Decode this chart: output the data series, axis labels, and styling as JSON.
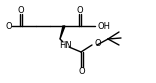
{
  "bg_color": "#ffffff",
  "line_color": "#000000",
  "lw": 1.0,
  "fs": 6.0,
  "figsize": [
    1.56,
    0.83
  ],
  "dpi": 100,
  "xlim": [
    0,
    156
  ],
  "ylim": [
    0,
    83
  ]
}
